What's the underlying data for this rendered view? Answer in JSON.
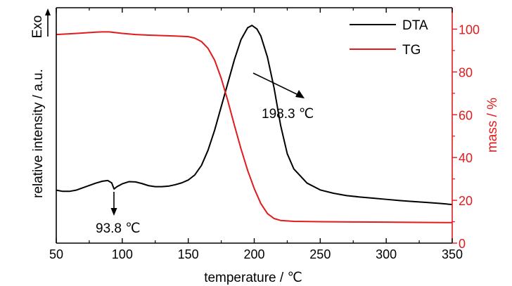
{
  "chart_data": {
    "type": "line",
    "xlabel": "temperature / ℃",
    "ylabel_left": "relative intensity / a.u.",
    "ylabel_right": "mass / %",
    "exo_label": "Exo",
    "xlim": [
      50,
      350
    ],
    "x_ticks": [
      50,
      100,
      150,
      200,
      250,
      300,
      350
    ],
    "x_tick_labels": [
      "50",
      "100",
      "150",
      "200",
      "250",
      "300",
      "350"
    ],
    "y_right_lim": [
      0,
      110
    ],
    "y_right_ticks": [
      0,
      20,
      40,
      60,
      80,
      100
    ],
    "y_right_tick_labels": [
      "0",
      "20",
      "40",
      "60",
      "80",
      "100"
    ],
    "y_left_lim": [
      0,
      100
    ],
    "grid": false,
    "legend_position": "top-right",
    "colors": {
      "DTA": "#000000",
      "TG": "#e31a1c",
      "right_axis": "#e31a1c"
    },
    "series": [
      {
        "name": "DTA",
        "axis": "left",
        "x": [
          50,
          55,
          60,
          65,
          70,
          75,
          80,
          85,
          89,
          92,
          93.8,
          96,
          100,
          105,
          110,
          115,
          120,
          125,
          130,
          135,
          140,
          145,
          150,
          155,
          160,
          165,
          170,
          175,
          180,
          185,
          190,
          195,
          198.3,
          202,
          205,
          210,
          215,
          220,
          225,
          230,
          240,
          250,
          260,
          270,
          280,
          290,
          300,
          310,
          320,
          330,
          340,
          350
        ],
        "values": [
          22.5,
          22.0,
          22.0,
          22.5,
          23.5,
          24.5,
          25.5,
          26.3,
          26.6,
          25.6,
          23.0,
          24.0,
          25.2,
          26.1,
          26.0,
          25.3,
          24.4,
          24.0,
          24.0,
          24.2,
          24.8,
          25.6,
          26.8,
          29.0,
          33.0,
          39.5,
          48.0,
          58.0,
          68.0,
          78.0,
          86.5,
          91.5,
          92.5,
          91.0,
          88.0,
          79.0,
          66.0,
          50.0,
          38.0,
          31.5,
          25.5,
          22.6,
          21.2,
          20.2,
          19.6,
          19.1,
          18.6,
          18.1,
          17.7,
          17.3,
          16.9,
          16.4
        ]
      },
      {
        "name": "TG",
        "axis": "right",
        "x": [
          50,
          60,
          70,
          80,
          85,
          90,
          100,
          110,
          120,
          130,
          140,
          150,
          155,
          160,
          165,
          170,
          175,
          180,
          185,
          190,
          195,
          200,
          205,
          210,
          215,
          220,
          225,
          230,
          240,
          250,
          275,
          300,
          325,
          350
        ],
        "values": [
          97.5,
          97.8,
          98.2,
          98.6,
          98.7,
          98.7,
          98.0,
          97.5,
          97.2,
          97.0,
          96.8,
          96.5,
          95.8,
          94.2,
          91.0,
          85.5,
          77.0,
          66.5,
          55.0,
          44.0,
          34.0,
          25.5,
          18.5,
          13.8,
          11.5,
          10.6,
          10.4,
          10.2,
          10.1,
          10.0,
          9.9,
          9.8,
          9.7,
          9.6
        ]
      }
    ],
    "annotations": [
      {
        "text": "198.3 ℃",
        "x": 198.3,
        "type": "peak",
        "target_series": "DTA"
      },
      {
        "text": "93.8 ℃",
        "x": 93.8,
        "type": "dip",
        "target_series": "DTA"
      }
    ]
  }
}
